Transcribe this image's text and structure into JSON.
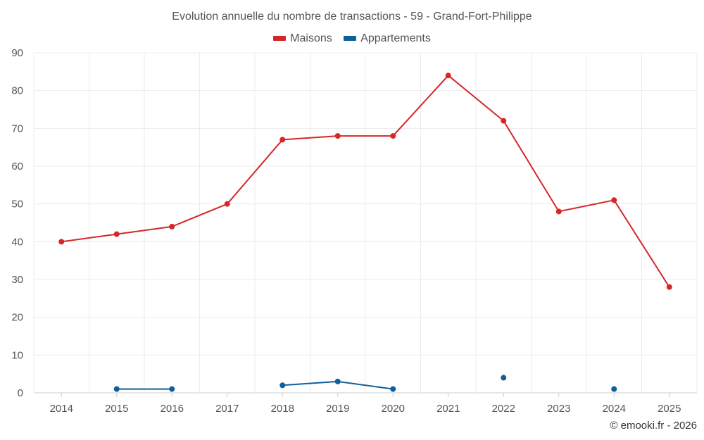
{
  "chart_data": {
    "type": "line",
    "title": "Evolution annuelle du nombre de transactions - 59 - Grand-Fort-Philippe",
    "categories": [
      "2014",
      "2015",
      "2016",
      "2017",
      "2018",
      "2019",
      "2020",
      "2021",
      "2022",
      "2023",
      "2024",
      "2025"
    ],
    "yticks": [
      "0",
      "10",
      "20",
      "30",
      "40",
      "50",
      "60",
      "70",
      "80",
      "90"
    ],
    "ylim": [
      0,
      90
    ],
    "grid": true,
    "legend_position": "top-center",
    "series": [
      {
        "name": "Maisons",
        "color": "#d62728",
        "values": [
          40,
          42,
          44,
          50,
          67,
          68,
          68,
          84,
          72,
          48,
          51,
          28
        ]
      },
      {
        "name": "Appartements",
        "color": "#0f5f99",
        "values": [
          null,
          1,
          1,
          null,
          2,
          3,
          1,
          null,
          4,
          null,
          1,
          null
        ]
      }
    ]
  },
  "credit": "© emooki.fr - 2026"
}
